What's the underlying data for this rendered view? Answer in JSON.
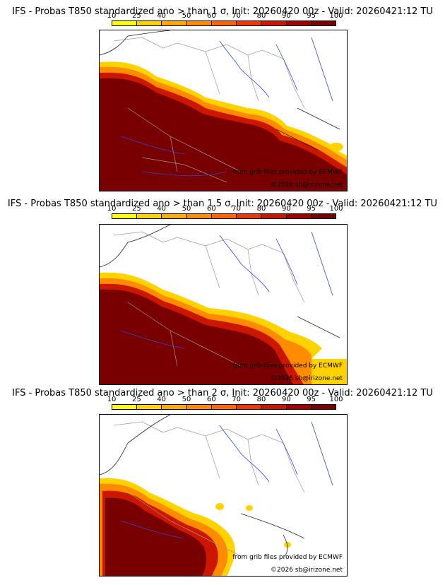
{
  "panels": [
    {
      "title": "IFS - Probas T850  standardized ano > than 1 σ, Init: 20260420 00z - Valid: 20260421:12 TU"
    },
    {
      "title": "IFS - Probas T850  standardized ano > than 1.5 σ, Init: 20260420 00z - Valid: 20260421:12 TU"
    },
    {
      "title": "IFS - Probas T850  standardized ano > than 2 σ, Init: 20260420 00z - Valid: 20260421:12 TU"
    }
  ],
  "colorbar": {
    "ticks": [
      "10",
      "25",
      "40",
      "50",
      "60",
      "70",
      "80",
      "90",
      "95",
      "100"
    ],
    "colors": [
      "#ffff00",
      "#ffd200",
      "#ffaa00",
      "#ff8c00",
      "#ff6400",
      "#ee3800",
      "#cc1600",
      "#a00000",
      "#780000"
    ]
  },
  "credits": {
    "source": "from grib files provided by ECMWF",
    "copyright": "©2026 sb@irizone.net"
  }
}
